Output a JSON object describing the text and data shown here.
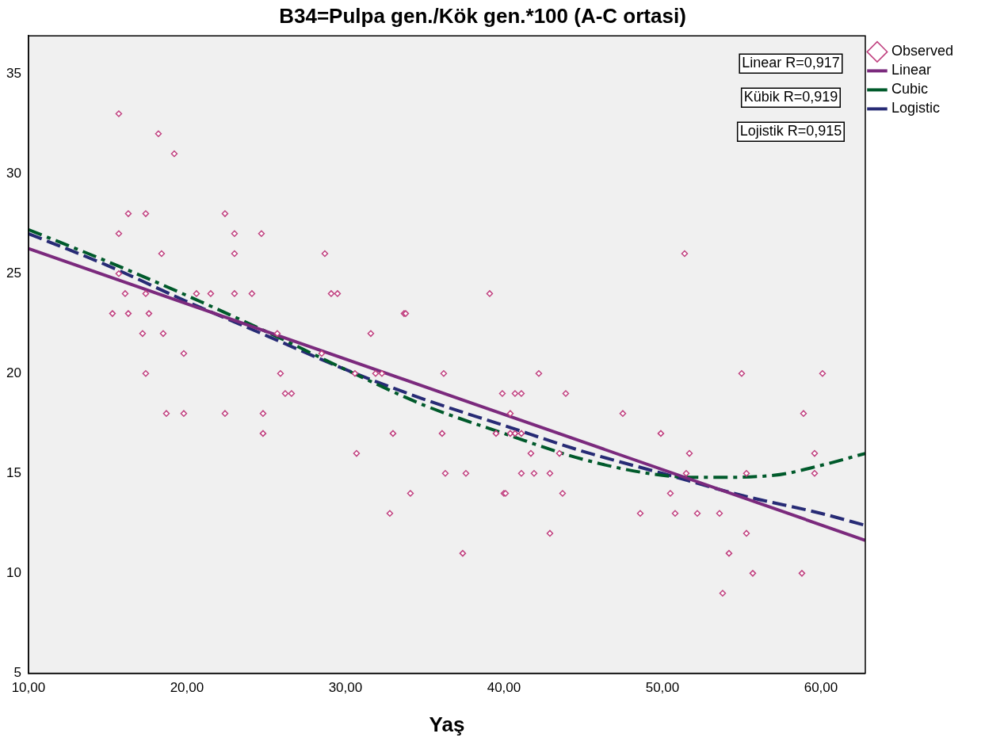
{
  "chart_data": {
    "type": "scatter",
    "title": "B34=Pulpa gen./Kök gen.*100 (A-C ortasi)",
    "xlabel": "Yaş",
    "xlim": [
      10,
      62.8
    ],
    "ylim": [
      5,
      36.9
    ],
    "xticks": [
      {
        "value": 10,
        "label": "10,00"
      },
      {
        "value": 20,
        "label": "20,00"
      },
      {
        "value": 30,
        "label": "30,00"
      },
      {
        "value": 40,
        "label": "40,00"
      },
      {
        "value": 50,
        "label": "50,00"
      },
      {
        "value": 60,
        "label": "60,00"
      }
    ],
    "yticks": [
      5,
      10,
      15,
      20,
      25,
      30,
      35
    ],
    "grid": false,
    "legend": "top right",
    "annotations": [
      "Linear R=0,917",
      "Kübik R=0,919",
      "Lojistik R=0,915"
    ],
    "series": [
      {
        "name": "Observed",
        "color": "#c0407f",
        "marker": "diamond",
        "x": [
          15.7,
          18.2,
          19.2,
          16.3,
          17.4,
          22.4,
          15.7,
          23.0,
          24.7,
          18.4,
          23.0,
          28.7,
          51.4,
          15.7,
          16.1,
          17.4,
          20.6,
          21.5,
          23.0,
          24.1,
          29.1,
          29.5,
          39.1,
          15.3,
          16.3,
          17.6,
          33.7,
          33.8,
          17.2,
          18.5,
          25.7,
          31.6,
          19.8,
          28.5,
          17.4,
          25.9,
          30.6,
          31.9,
          32.3,
          36.2,
          42.2,
          55.0,
          60.1,
          18.7,
          19.8,
          22.4,
          24.8,
          40.4,
          47.5,
          58.9,
          26.2,
          26.6,
          39.9,
          40.7,
          41.1,
          43.9,
          24.8,
          33.0,
          36.1,
          39.5,
          40.4,
          40.7,
          41.1,
          49.9,
          30.7,
          41.7,
          43.5,
          51.7,
          59.6,
          36.3,
          37.6,
          41.1,
          41.9,
          42.9,
          51.5,
          55.3,
          59.6,
          34.1,
          40.0,
          40.1,
          43.7,
          50.5,
          32.8,
          48.6,
          50.8,
          52.2,
          53.6,
          42.9,
          55.3,
          37.4,
          54.2,
          55.7,
          58.8,
          53.8
        ],
        "values": [
          33,
          32,
          31,
          28,
          28,
          28,
          27,
          27,
          27,
          26,
          26,
          26,
          26,
          25,
          24,
          24,
          24,
          24,
          24,
          24,
          24,
          24,
          24,
          23,
          23,
          23,
          23,
          23,
          22,
          22,
          22,
          22,
          21,
          21,
          20,
          20,
          20,
          20,
          20,
          20,
          20,
          20,
          20,
          18,
          18,
          18,
          18,
          18,
          18,
          18,
          19,
          19,
          19,
          19,
          19,
          19,
          17,
          17,
          17,
          17,
          17,
          17,
          17,
          17,
          16,
          16,
          16,
          16,
          16,
          15,
          15,
          15,
          15,
          15,
          15,
          15,
          15,
          14,
          14,
          14,
          14,
          14,
          13,
          13,
          13,
          13,
          13,
          12,
          12,
          11,
          11,
          10,
          10,
          9
        ]
      },
      {
        "name": "Linear",
        "type": "line",
        "color": "#7b2a7d",
        "line_style": "solid",
        "marker": "none",
        "x": [
          10,
          62.8
        ],
        "values": [
          26.25,
          11.65
        ]
      },
      {
        "name": "Cubic",
        "type": "line",
        "color": "#005a2b",
        "line_style": "dashdot",
        "marker": "none",
        "x": [
          10,
          15,
          20,
          25,
          30,
          35,
          40,
          45,
          50,
          53,
          57,
          60,
          62.8
        ],
        "values": [
          27.2,
          25.6,
          23.9,
          22.1,
          20.2,
          18.4,
          17.0,
          15.7,
          14.9,
          14.8,
          14.9,
          15.4,
          16.0
        ]
      },
      {
        "name": "Logistic",
        "type": "line",
        "color": "#272b75",
        "line_style": "dashed",
        "marker": "none",
        "x": [
          10,
          15,
          20,
          25,
          30,
          35,
          40,
          45,
          50,
          55,
          60,
          62.8
        ],
        "values": [
          27.0,
          25.4,
          23.6,
          21.9,
          20.2,
          18.7,
          17.4,
          16.1,
          15.0,
          13.9,
          13.0,
          12.4
        ]
      }
    ]
  }
}
